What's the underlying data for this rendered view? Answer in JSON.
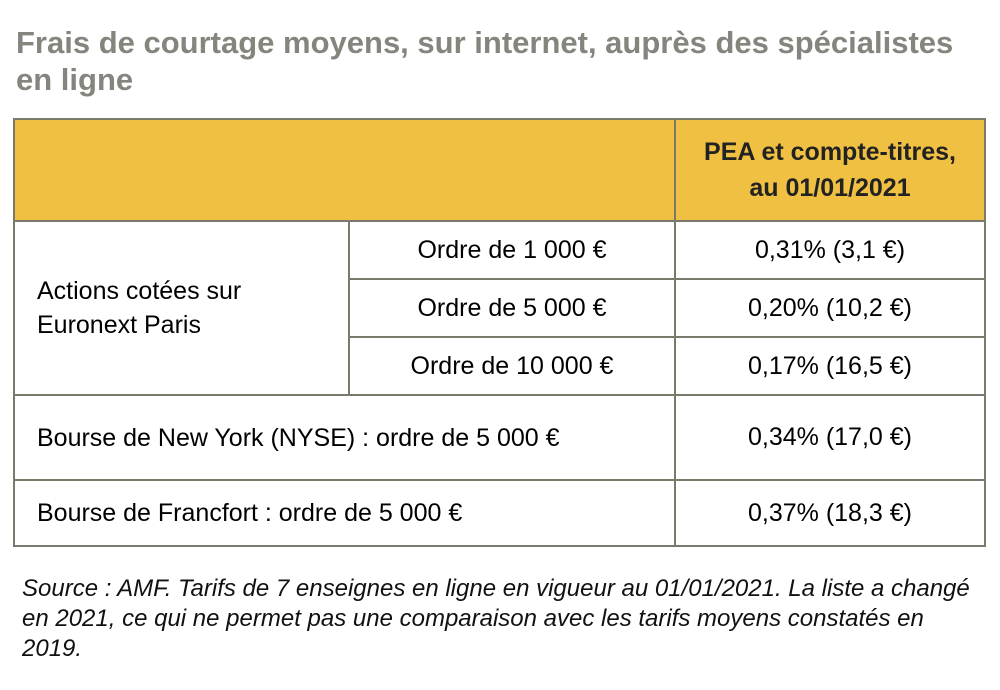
{
  "title": "Frais de courtage moyens, sur internet, auprès des spécialistes en ligne",
  "table": {
    "header": {
      "col": "PEA et compte-titres, au 01/01/2021",
      "line1": "PEA et compte-titres,",
      "line2": "au 01/01/2021"
    },
    "group_label": "Actions cotées sur Euronext Paris",
    "group_rows": [
      {
        "label": "Ordre de 1 000 €",
        "value": "0,31% (3,1 €)"
      },
      {
        "label": "Ordre de 5 000 €",
        "value": "0,20% (10,2 €)"
      },
      {
        "label": "Ordre de 10 000 €",
        "value": "0,17% (16,5 €)"
      }
    ],
    "rows": [
      {
        "label": "Bourse de New York (NYSE)  :  ordre de 5 000 €",
        "value": "0,34% (17,0 €)"
      },
      {
        "label": "Bourse de Francfort :  ordre de 5 000 €",
        "value": "0,37% (18,3 €)"
      }
    ]
  },
  "source": "Source : AMF. Tarifs de 7 enseignes en ligne en vigueur au 01/01/2021. La liste a changé en 2021, ce qui ne permet pas une comparaison avec les tarifs moyens constatés en 2019.",
  "colors": {
    "header_bg": "#efc042",
    "border": "#7a7a6c",
    "title": "#85857e"
  }
}
